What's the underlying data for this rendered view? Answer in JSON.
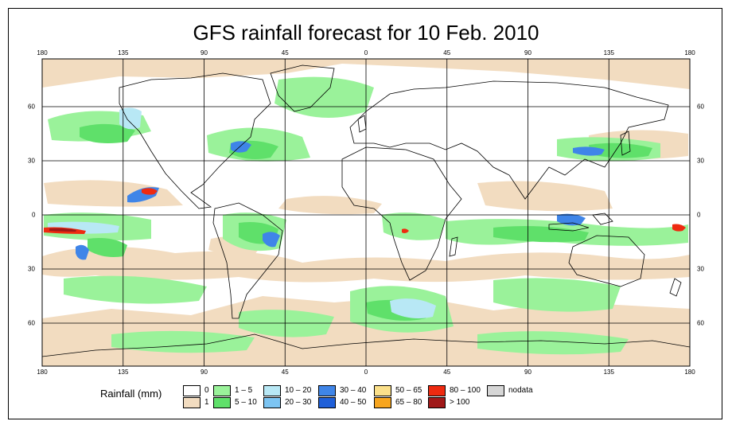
{
  "title": "GFS rainfall forecast for 10 Feb. 2010",
  "axes": {
    "lon_ticks": [
      "180",
      "135",
      "90",
      "45",
      "0",
      "45",
      "90",
      "135",
      "180"
    ],
    "lat_ticks": [
      "60",
      "30",
      "0",
      "30",
      "60"
    ]
  },
  "legend": {
    "title": "Rainfall (mm)",
    "items": [
      {
        "label": "0",
        "color": "#ffffff"
      },
      {
        "label": "1",
        "color": "#f2dcc0"
      },
      {
        "label": "1 – 5",
        "color": "#9af29a"
      },
      {
        "label": "5 – 10",
        "color": "#5fe06a"
      },
      {
        "label": "10 – 20",
        "color": "#b8e8f5"
      },
      {
        "label": "20 – 30",
        "color": "#7cc4f2"
      },
      {
        "label": "30 – 40",
        "color": "#3f85e8"
      },
      {
        "label": "40 – 50",
        "color": "#1f5fd8"
      },
      {
        "label": "50 – 65",
        "color": "#fbe08a"
      },
      {
        "label": "65 – 80",
        "color": "#f7a51e"
      },
      {
        "label": "80 – 100",
        "color": "#ee2a10"
      },
      {
        "label": "> 100",
        "color": "#a01818"
      },
      {
        "label": "nodata",
        "color": "#d6d6d6"
      }
    ]
  }
}
